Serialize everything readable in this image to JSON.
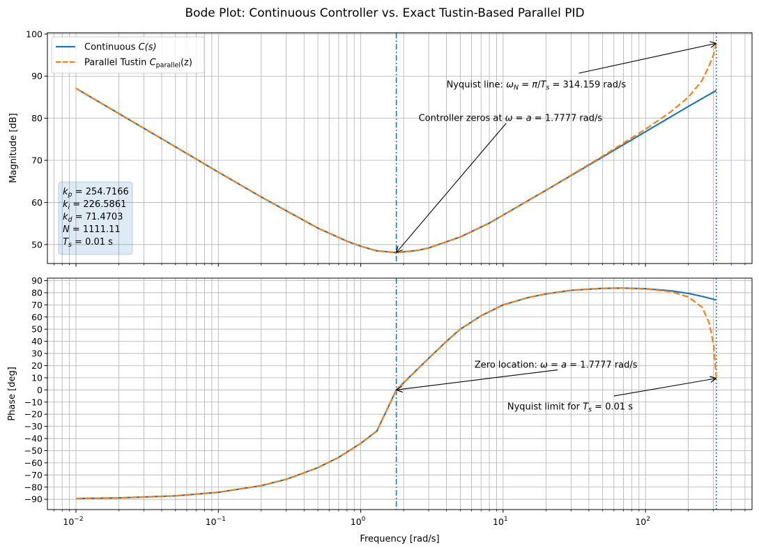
{
  "chart_data": [
    {
      "type": "line",
      "title": "Bode Plot: Continuous Controller vs. Exact Tustin-Based Parallel PID",
      "panel": "magnitude",
      "xlabel": "",
      "ylabel": "Magnitude [dB]",
      "xscale": "log",
      "xlim": [
        0.0063,
        560
      ],
      "ylim": [
        45.5,
        100.3
      ],
      "xticks": [
        0.01,
        0.1,
        1,
        10,
        100
      ],
      "xtick_labels": [
        "10",
        "10",
        "10",
        "10",
        "10"
      ],
      "xtick_exponents": [
        "−2",
        "−1",
        "0",
        "1",
        "2"
      ],
      "yticks": [
        50,
        60,
        70,
        80,
        90,
        100
      ],
      "ytick_labels": [
        "50",
        "60",
        "70",
        "80",
        "90",
        "100"
      ],
      "grid": true,
      "legend_position": "upper-left",
      "legend": [
        {
          "prefix": "Continuous ",
          "math": "C(s)"
        },
        {
          "prefix": "Parallel Tustin ",
          "math": "C",
          "sub": "parallel",
          "suffix": "(z)"
        }
      ],
      "series": [
        {
          "name": "Continuous C(s)",
          "color": "#1f77b4",
          "style": "solid",
          "x": [
            0.01,
            0.02,
            0.05,
            0.1,
            0.2,
            0.5,
            0.8,
            1.0,
            1.3,
            1.7777,
            2.5,
            3.0,
            5.0,
            8.0,
            10,
            20,
            50,
            100,
            200,
            314.159
          ],
          "y": [
            87.1,
            81.1,
            73.2,
            67.2,
            61.3,
            53.9,
            50.8,
            49.6,
            48.5,
            48.1,
            48.6,
            49.2,
            51.8,
            55.1,
            57.0,
            62.9,
            70.8,
            76.8,
            82.8,
            86.6
          ]
        },
        {
          "name": "Parallel Tustin C_parallel(z)",
          "color": "#ff7f0e",
          "style": "dashed",
          "x": [
            0.01,
            0.02,
            0.05,
            0.1,
            0.2,
            0.5,
            0.8,
            1.0,
            1.3,
            1.7777,
            2.5,
            3.0,
            5.0,
            8.0,
            10,
            20,
            50,
            100,
            150,
            200,
            250,
            280,
            300,
            314.159
          ],
          "y": [
            87.1,
            81.1,
            73.2,
            67.2,
            61.3,
            53.9,
            50.8,
            49.6,
            48.5,
            48.1,
            48.6,
            49.2,
            51.8,
            55.1,
            57.0,
            62.9,
            71.0,
            77.4,
            81.5,
            85.0,
            89.0,
            92.5,
            95.0,
            97.8
          ]
        }
      ],
      "vlines": [
        {
          "x": 1.7777,
          "color": "#1f77b4",
          "style": "dashdot"
        },
        {
          "x": 314.159,
          "color": "#1f77b4",
          "style": "dotted"
        }
      ],
      "annotations": [
        {
          "parts": [
            {
              "t": "Nyquist line: "
            },
            {
              "t": "ω",
              "i": true
            },
            {
              "t": "N",
              "sub": true,
              "i": true
            },
            {
              "t": " = "
            },
            {
              "t": "π",
              "i": true
            },
            {
              "t": "/"
            },
            {
              "t": "T",
              "i": true
            },
            {
              "t": "s",
              "sub": true,
              "i": true
            },
            {
              "t": " = 314.159 rad/s"
            }
          ],
          "text_x": 4.0,
          "text_y": 88.0,
          "arrow_from_x": 34,
          "arrow_from_y": 90.7,
          "arrow_to_x": 314.159,
          "arrow_to_y": 97.8
        },
        {
          "parts": [
            {
              "t": "Controller zeros at "
            },
            {
              "t": "ω",
              "i": true
            },
            {
              "t": " = "
            },
            {
              "t": "a",
              "i": true
            },
            {
              "t": " = 1.7777 rad/s"
            }
          ],
          "text_x": 2.55,
          "text_y": 80.0,
          "arrow_from_x": 10.5,
          "arrow_from_y": 78.8,
          "arrow_to_x": 1.7777,
          "arrow_to_y": 48.1
        }
      ],
      "info_box": [
        {
          "sym": "k",
          "sub": "p",
          "val": " = 254.7166"
        },
        {
          "sym": "k",
          "sub": "i",
          "val": " = 226.5861"
        },
        {
          "sym": "k",
          "sub": "d",
          "val": " = 71.4703"
        },
        {
          "sym": "N",
          "sub": "",
          "val": " = 1111.11"
        },
        {
          "sym": "T",
          "sub": "s",
          "val": " = 0.01 s"
        }
      ]
    },
    {
      "type": "line",
      "panel": "phase",
      "xlabel": "Frequency [rad/s]",
      "ylabel": "Phase [deg]",
      "xscale": "log",
      "xlim": [
        0.0063,
        560
      ],
      "ylim": [
        -98.5,
        92
      ],
      "xticks": [
        0.01,
        0.1,
        1,
        10,
        100
      ],
      "xtick_labels": [
        "10",
        "10",
        "10",
        "10",
        "10"
      ],
      "xtick_exponents": [
        "−2",
        "−1",
        "0",
        "1",
        "2"
      ],
      "yticks": [
        -90,
        -80,
        -70,
        -60,
        -50,
        -40,
        -30,
        -20,
        -10,
        0,
        10,
        20,
        30,
        40,
        50,
        60,
        70,
        80,
        90
      ],
      "ytick_labels": [
        "−90",
        "−80",
        "−70",
        "−60",
        "−50",
        "−40",
        "−30",
        "−20",
        "−10",
        "0",
        "10",
        "20",
        "30",
        "40",
        "50",
        "60",
        "70",
        "80",
        "90"
      ],
      "grid": true,
      "series": [
        {
          "name": "Continuous C(s)",
          "color": "#1f77b4",
          "style": "solid",
          "x": [
            0.01,
            0.02,
            0.05,
            0.1,
            0.2,
            0.3,
            0.5,
            0.7,
            1.0,
            1.3,
            1.7777,
            2.5,
            3.0,
            4.0,
            5.0,
            7.0,
            10,
            15,
            20,
            30,
            50,
            70,
            100,
            150,
            200,
            250,
            314.159
          ],
          "y": [
            -89.4,
            -88.9,
            -87.2,
            -84.3,
            -78.8,
            -73.6,
            -64.0,
            -55.5,
            -44.0,
            -33.7,
            0.0,
            17.0,
            26.0,
            40.0,
            50.0,
            61.0,
            70.0,
            76.0,
            79.0,
            82.0,
            83.6,
            83.8,
            83.3,
            81.6,
            79.4,
            77.0,
            74.0
          ]
        },
        {
          "name": "Parallel Tustin C_parallel(z)",
          "color": "#ff7f0e",
          "style": "dashed",
          "x": [
            0.01,
            0.02,
            0.05,
            0.1,
            0.2,
            0.3,
            0.5,
            0.7,
            1.0,
            1.3,
            1.7777,
            2.5,
            3.0,
            4.0,
            5.0,
            7.0,
            10,
            15,
            20,
            30,
            50,
            70,
            100,
            150,
            200,
            250,
            280,
            300,
            314.159
          ],
          "y": [
            -89.4,
            -88.9,
            -87.2,
            -84.3,
            -78.8,
            -73.6,
            -64.0,
            -55.5,
            -44.0,
            -33.7,
            0.0,
            17.0,
            26.0,
            40.0,
            50.0,
            61.0,
            70.0,
            76.0,
            79.0,
            82.0,
            83.6,
            83.8,
            83.1,
            80.9,
            76.5,
            68.0,
            55.0,
            38.0,
            10.0
          ]
        }
      ],
      "vlines": [
        {
          "x": 1.7777,
          "color": "#1f77b4",
          "style": "dashdot"
        },
        {
          "x": 314.159,
          "color": "#1f77b4",
          "style": "dotted"
        }
      ],
      "annotations": [
        {
          "parts": [
            {
              "t": "Zero location: "
            },
            {
              "t": "ω",
              "i": true
            },
            {
              "t": " = "
            },
            {
              "t": "a",
              "i": true
            },
            {
              "t": " = 1.7777 rad/s"
            }
          ],
          "text_x": 6.3,
          "text_y": 20.5,
          "arrow_from_x": 24.2,
          "arrow_from_y": 16.5,
          "arrow_to_x": 1.7777,
          "arrow_to_y": 0.0
        },
        {
          "parts": [
            {
              "t": "Nyquist limit for "
            },
            {
              "t": "T",
              "i": true
            },
            {
              "t": "s",
              "sub": true,
              "i": true
            },
            {
              "t": " = 0.01 s"
            }
          ],
          "text_x": 10.7,
          "text_y": -14.0,
          "arrow_from_x": 60,
          "arrow_from_y": -5.0,
          "arrow_to_x": 314.159,
          "arrow_to_y": 9.5
        }
      ]
    }
  ]
}
